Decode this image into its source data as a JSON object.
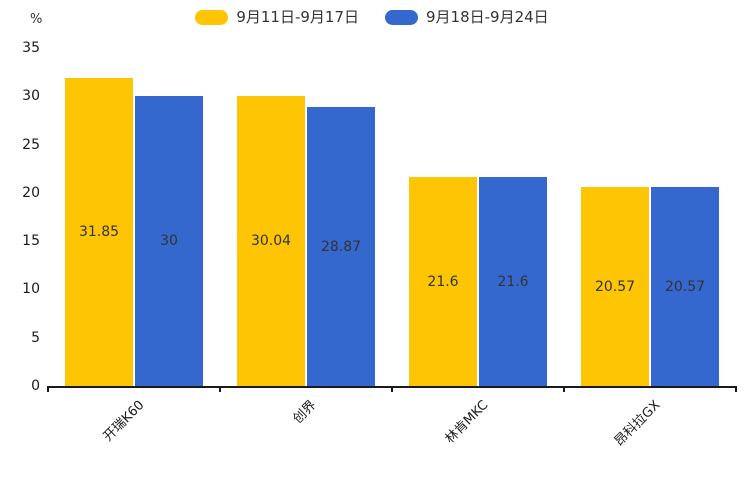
{
  "chart_data": {
    "type": "bar",
    "categories": [
      "开瑞K60",
      "创界",
      "林肯MKC",
      "昂科拉GX"
    ],
    "series": [
      {
        "name": "9月11日-9月17日",
        "color": "#FDC503",
        "values": [
          31.85,
          30.04,
          21.6,
          20.57
        ],
        "labels": [
          "31.85",
          "30.04",
          "21.6",
          "20.57"
        ]
      },
      {
        "name": "9月18日-9月24日",
        "color": "#3568CE",
        "values": [
          30,
          28.87,
          21.6,
          20.57
        ],
        "labels": [
          "30",
          "28.87",
          "21.6",
          "20.57"
        ]
      }
    ],
    "ylabel": "%",
    "ylim": [
      0,
      35
    ],
    "yticks": [
      0,
      5,
      10,
      15,
      20,
      25,
      30,
      35
    ],
    "legend_position": "top-center",
    "grid": false,
    "bar_label_color": "#333333",
    "axis_color": "#1a1a1a"
  }
}
